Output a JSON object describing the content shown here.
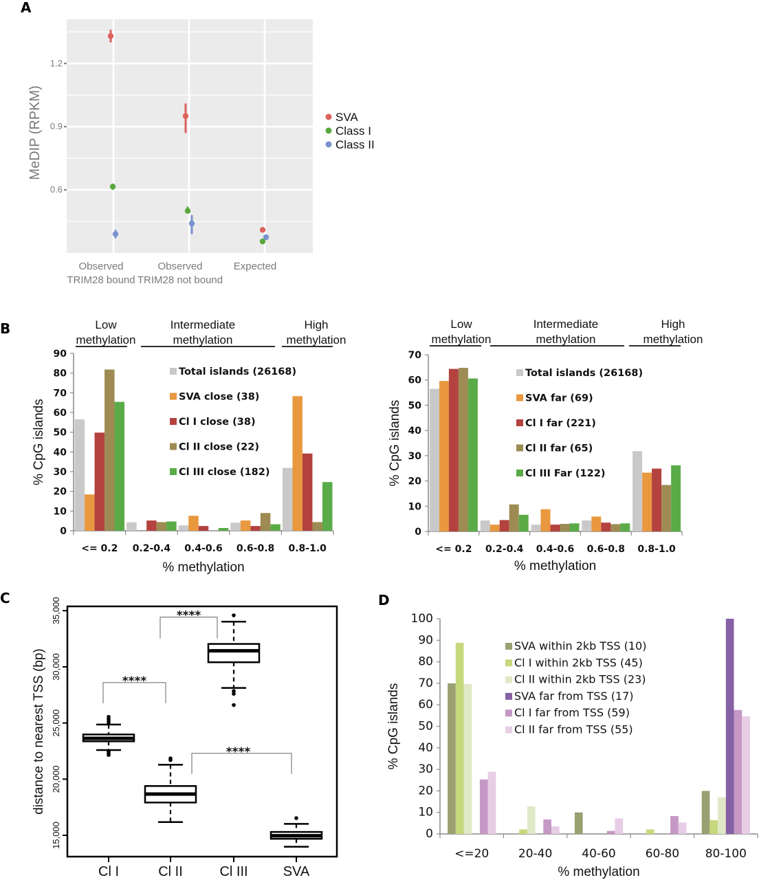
{
  "chart_data": [
    {
      "panel": "A",
      "type": "scatter",
      "title": "",
      "xlabel": "",
      "ylabel": "MeDIP (RPKM)",
      "ylim": [
        0.3,
        1.41
      ],
      "yticks": [
        0.6,
        0.9,
        1.2
      ],
      "ytick_labels": [
        "0.6",
        "0.9",
        "1.2"
      ],
      "grid": true,
      "legend_position": "right",
      "categories": [
        "Observed\nTRIM28 bound",
        "Observed\nTRIM28 not bound",
        "Expected"
      ],
      "category_lines": [
        [
          "Observed",
          "TRIM28 bound"
        ],
        [
          "Observed",
          "TRIM28 not bound"
        ],
        [
          "Expected"
        ]
      ],
      "series": [
        {
          "name": "SVA",
          "color": "#db625d",
          "values": [
            1.33,
            0.95,
            0.41
          ],
          "err_low": [
            1.3,
            0.87,
            0.4
          ],
          "err_high": [
            1.36,
            1.01,
            0.42
          ]
        },
        {
          "name": "Class I",
          "color": "#5aa83c",
          "values": [
            0.615,
            0.5,
            0.355
          ],
          "err_low": [
            0.6,
            0.49,
            0.35
          ],
          "err_high": [
            0.63,
            0.52,
            0.36
          ]
        },
        {
          "name": "Class II",
          "color": "#7a93cf",
          "values": [
            0.39,
            0.44,
            0.375
          ],
          "err_low": [
            0.37,
            0.39,
            0.37
          ],
          "err_high": [
            0.41,
            0.48,
            0.385
          ]
        }
      ]
    },
    {
      "panel": "B-left",
      "type": "bar",
      "title": "",
      "xlabel": "% methylation",
      "ylabel": "% CpG islands",
      "ylim": [
        0,
        90
      ],
      "yticks": [
        0,
        10,
        20,
        30,
        40,
        50,
        60,
        70,
        80,
        90
      ],
      "grid": false,
      "legend_position": "top-center",
      "categories": [
        "<= 0.2",
        "0.2-0.4",
        "0.4-0.6",
        "0.6-0.8",
        "0.8-1.0"
      ],
      "group_headers": [
        {
          "line1": "Low",
          "line2": "methylation"
        },
        {
          "line1": "Intermediate",
          "line2": "methylation"
        },
        {
          "line1": "High",
          "line2": "methylation"
        }
      ],
      "series": [
        {
          "name": "Total islands (26168)",
          "color": "#c9c9c9",
          "values": [
            56.5,
            4.3,
            2.7,
            4.1,
            31.9
          ]
        },
        {
          "name": "SVA close (38)",
          "color": "#e9983f",
          "values": [
            18.4,
            0,
            7.6,
            5.2,
            68.3
          ]
        },
        {
          "name": "Cl I close (38)",
          "color": "#b4423f",
          "values": [
            49.8,
            5.2,
            2.4,
            2.4,
            39.2
          ]
        },
        {
          "name": "Cl II close (22)",
          "color": "#9d8b53",
          "values": [
            81.8,
            4.4,
            0,
            9.0,
            4.4
          ]
        },
        {
          "name": "Cl III close (182)",
          "color": "#5aab47",
          "values": [
            65.4,
            4.7,
            1.4,
            3.3,
            24.7
          ]
        }
      ]
    },
    {
      "panel": "B-right",
      "type": "bar",
      "title": "",
      "xlabel": "% methylation",
      "ylabel": "% CpG islands",
      "ylim": [
        0,
        70
      ],
      "yticks": [
        0,
        10,
        20,
        30,
        40,
        50,
        60,
        70
      ],
      "grid": false,
      "legend_position": "top-center",
      "categories": [
        "<= 0.2",
        "0.2-0.4",
        "0.4-0.6",
        "0.6-0.8",
        "0.8-1.0"
      ],
      "group_headers": [
        {
          "line1": "Low",
          "line2": "methylation"
        },
        {
          "line1": "Intermediate",
          "line2": "methylation"
        },
        {
          "line1": "High",
          "line2": "methylation"
        }
      ],
      "series": [
        {
          "name": "Total islands (26168)",
          "color": "#c9c9c9",
          "values": [
            56.5,
            4.35,
            2.7,
            4.35,
            31.8
          ]
        },
        {
          "name": "SVA far (69)",
          "color": "#e9983f",
          "values": [
            59.6,
            2.7,
            8.8,
            5.9,
            23.3
          ]
        },
        {
          "name": "Cl I far (221)",
          "color": "#b4423f",
          "values": [
            64.4,
            4.5,
            2.7,
            3.5,
            24.9
          ]
        },
        {
          "name": "Cl II far (65)",
          "color": "#9d8b53",
          "values": [
            64.8,
            10.7,
            3.0,
            2.9,
            18.4
          ]
        },
        {
          "name": "Cl III Far (122)",
          "color": "#5aab47",
          "values": [
            60.6,
            6.6,
            3.2,
            3.2,
            26.2
          ]
        }
      ]
    },
    {
      "panel": "C",
      "type": "box",
      "title": "",
      "xlabel": "",
      "ylabel": "distance to nearest TSS (bp)",
      "ylim": [
        13000,
        35250
      ],
      "yticks": [
        15000,
        20000,
        25000,
        30000,
        35000
      ],
      "ytick_labels": [
        "15,000",
        "20,000",
        "25,000",
        "30,000",
        "35,000"
      ],
      "grid": false,
      "categories": [
        "Cl I",
        "Cl II",
        "Cl III",
        "SVA"
      ],
      "boxes": [
        {
          "name": "Cl I",
          "q1": 23370,
          "median": 23630,
          "q3": 23980,
          "whisker_low": 22590,
          "whisker_high": 24860,
          "outliers": [
            22150,
            22300,
            22450,
            24950,
            25150,
            25350,
            25550
          ]
        },
        {
          "name": "Cl II",
          "q1": 17920,
          "median": 18670,
          "q3": 19390,
          "whisker_low": 16180,
          "whisker_high": 21280,
          "outliers": [
            21700,
            21850
          ]
        },
        {
          "name": "Cl III",
          "q1": 30410,
          "median": 31430,
          "q3": 32040,
          "whisker_low": 28120,
          "whisker_high": 34020,
          "outliers": [
            34590,
            27850,
            27600,
            26600
          ]
        },
        {
          "name": "SVA",
          "q1": 14690,
          "median": 14960,
          "q3": 15300,
          "whisker_low": 13980,
          "whisker_high": 16020,
          "outliers": [
            16530
          ]
        }
      ],
      "significance": [
        {
          "from": "Cl I",
          "to": "Cl II",
          "label": "****",
          "y": 28600
        },
        {
          "from": "Cl II",
          "to": "Cl III",
          "label": "****",
          "y": 34430
        },
        {
          "from": "Cl II",
          "to": "SVA",
          "label": "****",
          "y": 22300
        }
      ]
    },
    {
      "panel": "D",
      "type": "bar",
      "title": "",
      "xlabel": "% methylation",
      "ylabel": "% CpG islands",
      "ylim": [
        0,
        100
      ],
      "yticks": [
        0,
        10,
        20,
        30,
        40,
        50,
        60,
        70,
        80,
        90,
        100
      ],
      "grid": false,
      "legend_position": "top-center",
      "categories": [
        "<=20",
        "20-40",
        "40-60",
        "60-80",
        "80-100"
      ],
      "series": [
        {
          "name": "SVA within 2kb TSS (10)",
          "color": "#9aa072",
          "values": [
            70,
            0,
            10,
            0,
            20
          ]
        },
        {
          "name": "Cl I within 2kb TSS (45)",
          "color": "#c7d87c",
          "values": [
            88.8,
            2.1,
            0,
            2.1,
            6.4
          ]
        },
        {
          "name": "Cl II within 2kb TSS (23)",
          "color": "#e1e8c6",
          "values": [
            69.7,
            12.8,
            0,
            0,
            17.1
          ]
        },
        {
          "name": "SVA far from TSS (17)",
          "color": "#8661a6",
          "values": [
            0,
            0,
            0,
            0,
            100
          ]
        },
        {
          "name": "Cl I far from TSS (59)",
          "color": "#c698c6",
          "values": [
            25.3,
            6.7,
            1.4,
            8.3,
            57.6
          ]
        },
        {
          "name": "Cl II far from TSS (55)",
          "color": "#e7cde5",
          "values": [
            28.9,
            3.5,
            7.2,
            5.3,
            54.6
          ]
        }
      ]
    }
  ],
  "panel_letters": [
    "A",
    "B",
    "C",
    "D"
  ]
}
